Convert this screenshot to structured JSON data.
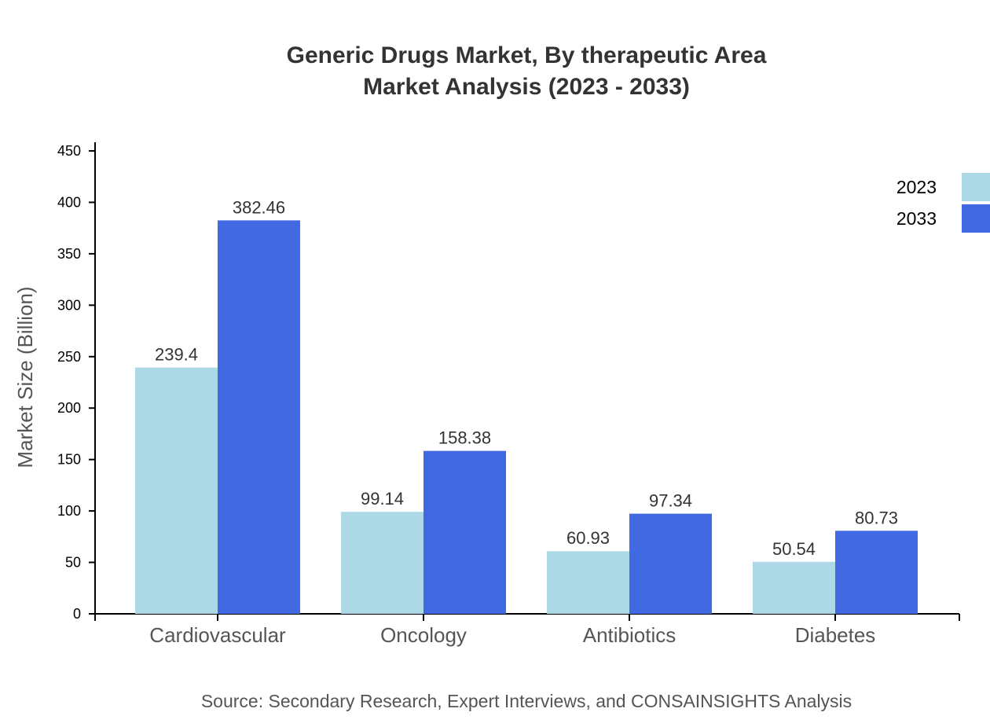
{
  "chart_data": {
    "type": "bar",
    "title": "Generic Drugs Market, By therapeutic Area",
    "subtitle": "Market Analysis (2023 - 2033)",
    "xlabel": "",
    "ylabel": "Market Size (Billion)",
    "ylim": [
      0,
      450
    ],
    "yticks": [
      0,
      50,
      100,
      150,
      200,
      250,
      300,
      350,
      400,
      450
    ],
    "categories": [
      "Cardiovascular",
      "Oncology",
      "Antibiotics",
      "Diabetes"
    ],
    "series": [
      {
        "name": "2023",
        "color": "#add8e6",
        "values": [
          239.4,
          99.14,
          60.93,
          50.54
        ]
      },
      {
        "name": "2033",
        "color": "#4169e1",
        "values": [
          382.46,
          158.38,
          97.34,
          80.73
        ]
      }
    ],
    "grid": false,
    "legend": "top-right",
    "source": "Source: Secondary Research, Expert Interviews, and CONSAINSIGHTS Analysis"
  }
}
